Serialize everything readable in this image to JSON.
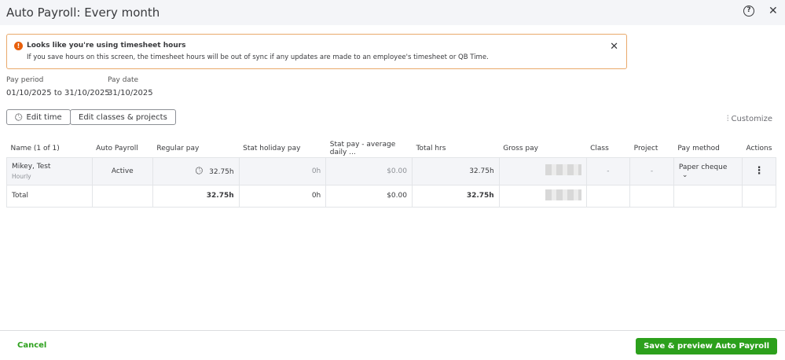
{
  "title": "Auto Payroll: Every month",
  "alert": {
    "heading": "Looks like you're using timesheet hours",
    "body": "If you save hours on this screen, the timesheet hours will be out of sync if any updates are made to an employee's timesheet or QB Time."
  },
  "pay_period": {
    "label": "Pay period",
    "value": "01/10/2025 to 31/10/2025"
  },
  "pay_date": {
    "label": "Pay date",
    "value": "31/10/2025"
  },
  "buttons": {
    "edit_time": "Edit time",
    "edit_classes": "Edit classes & projects",
    "customize": "Customize",
    "cancel": "Cancel",
    "save": "Save & preview Auto Payroll"
  },
  "table": {
    "headers": [
      "Name (1 of 1)",
      "Auto Payroll",
      "Regular pay",
      "Stat holiday pay",
      "Stat pay - average daily ...",
      "Total hrs",
      "Gross pay",
      "Class",
      "Project",
      "Pay method",
      "Actions"
    ],
    "row": {
      "name": "Mikey, Test",
      "type": "Hourly",
      "auto_payroll": "Active",
      "regular_pay": "32.75h",
      "stat_holiday": "0h",
      "stat_pay": "$0.00",
      "total_hrs": "32.75h",
      "class": "-",
      "project": "-",
      "pay_method": "Paper cheque"
    },
    "total": {
      "label": "Total",
      "regular_pay": "32.75h",
      "stat_holiday": "0h",
      "stat_pay": "$0.00",
      "total_hrs": "32.75h"
    }
  },
  "colors": {
    "accent": "#2ca01c",
    "warning": "#e8600c"
  }
}
